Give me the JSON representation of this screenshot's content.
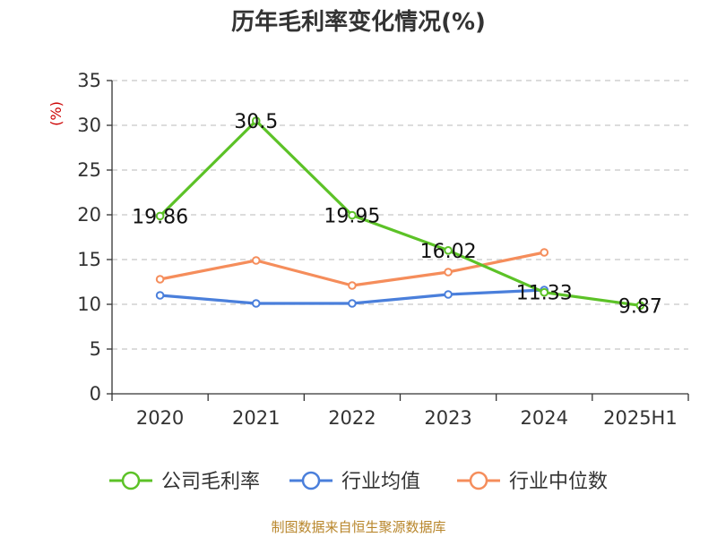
{
  "chart_data": {
    "type": "line",
    "title": "历年毛利率变化情况(%)",
    "ylabel": "(%)",
    "categories": [
      "2020",
      "2021",
      "2022",
      "2023",
      "2024",
      "2025H1"
    ],
    "ylim": [
      0,
      35
    ],
    "yticks": [
      "0",
      "5",
      "10",
      "15",
      "20",
      "25",
      "30",
      "35"
    ],
    "grid": true,
    "legend_position": "bottom",
    "series": [
      {
        "name": "公司毛利率",
        "color": "#5cc227",
        "values": [
          19.86,
          30.5,
          19.95,
          16.02,
          11.33,
          9.87
        ],
        "labels": [
          "19.86",
          "30.5",
          "19.95",
          "16.02",
          "11.33",
          "9.87"
        ]
      },
      {
        "name": "行业均值",
        "color": "#4a7fdb",
        "values": [
          11.0,
          10.1,
          10.1,
          11.1,
          11.6,
          null
        ]
      },
      {
        "name": "行业中位数",
        "color": "#f58d5b",
        "values": [
          12.8,
          14.9,
          12.1,
          13.6,
          15.8,
          null
        ]
      }
    ]
  },
  "source": "制图数据来自恒生聚源数据库"
}
